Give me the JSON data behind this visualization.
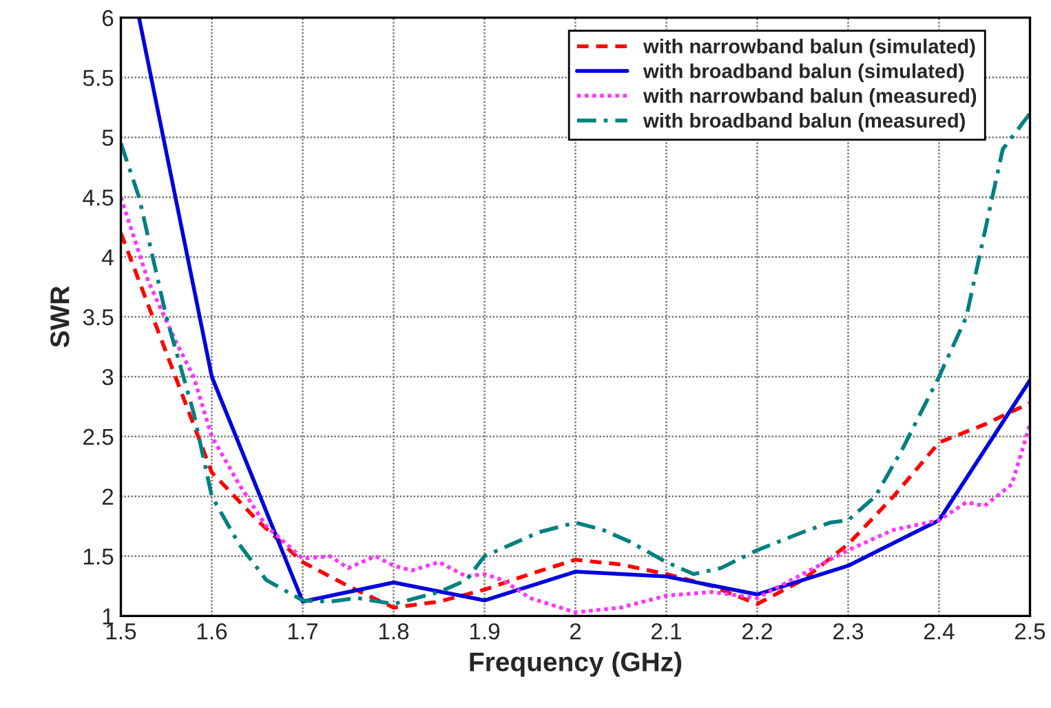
{
  "chart_data": {
    "type": "line",
    "xlabel": "Frequency (GHz)",
    "ylabel": "SWR",
    "xlim": [
      1.5,
      2.5
    ],
    "xticks": [
      1.5,
      1.6,
      1.7,
      1.8,
      1.9,
      2,
      2.1,
      2.2,
      2.3,
      2.4,
      2.5
    ],
    "ylim": [
      1,
      6
    ],
    "yticks": [
      1,
      1.5,
      2,
      2.5,
      3,
      3.5,
      4,
      4.5,
      5,
      5.5,
      6
    ],
    "grid": true,
    "legend": "top right",
    "marker": "none",
    "series": [
      {
        "name": "with narrowband balun (simulated)",
        "color": "#ff0000",
        "line_style": "dashed",
        "x": [
          1.5,
          1.55,
          1.6,
          1.65,
          1.7,
          1.75,
          1.8,
          1.85,
          1.9,
          1.95,
          2.0,
          2.05,
          2.1,
          2.15,
          2.2,
          2.25,
          2.3,
          2.35,
          2.4,
          2.45,
          2.5
        ],
        "values": [
          4.2,
          3.2,
          2.2,
          1.8,
          1.45,
          1.25,
          1.07,
          1.12,
          1.22,
          1.35,
          1.47,
          1.43,
          1.35,
          1.25,
          1.1,
          1.3,
          1.6,
          2.0,
          2.45,
          2.6,
          2.78
        ]
      },
      {
        "name": "with broadband balun (simulated)",
        "color": "#0000dd",
        "line_style": "solid",
        "x": [
          1.52,
          1.6,
          1.7,
          1.8,
          1.9,
          2.0,
          2.1,
          2.2,
          2.3,
          2.4,
          2.5
        ],
        "values": [
          6.0,
          3.0,
          1.12,
          1.28,
          1.13,
          1.37,
          1.33,
          1.18,
          1.42,
          1.8,
          2.97
        ]
      },
      {
        "name": "with narrowband balun (measured)",
        "color": "#ff33ff",
        "line_style": "dotted",
        "x": [
          1.5,
          1.53,
          1.56,
          1.58,
          1.6,
          1.63,
          1.66,
          1.7,
          1.73,
          1.75,
          1.78,
          1.8,
          1.82,
          1.85,
          1.88,
          1.9,
          1.92,
          1.95,
          2.0,
          2.05,
          2.1,
          2.15,
          2.2,
          2.25,
          2.3,
          2.35,
          2.4,
          2.43,
          2.45,
          2.48,
          2.5
        ],
        "values": [
          4.5,
          3.8,
          3.3,
          3.0,
          2.5,
          2.1,
          1.75,
          1.48,
          1.5,
          1.4,
          1.5,
          1.42,
          1.38,
          1.45,
          1.33,
          1.35,
          1.3,
          1.15,
          1.03,
          1.07,
          1.17,
          1.2,
          1.15,
          1.35,
          1.55,
          1.72,
          1.8,
          1.95,
          1.92,
          2.1,
          2.6
        ]
      },
      {
        "name": "with broadband balun (measured)",
        "color": "#008080",
        "line_style": "dashdot",
        "x": [
          1.5,
          1.52,
          1.55,
          1.58,
          1.6,
          1.63,
          1.66,
          1.7,
          1.73,
          1.76,
          1.8,
          1.85,
          1.88,
          1.9,
          1.93,
          1.96,
          2.0,
          2.03,
          2.06,
          2.1,
          2.13,
          2.16,
          2.2,
          2.25,
          2.28,
          2.3,
          2.33,
          2.36,
          2.4,
          2.43,
          2.45,
          2.47,
          2.5
        ],
        "values": [
          4.95,
          4.5,
          3.5,
          2.7,
          2.0,
          1.6,
          1.3,
          1.13,
          1.12,
          1.15,
          1.1,
          1.2,
          1.3,
          1.5,
          1.6,
          1.7,
          1.78,
          1.72,
          1.62,
          1.45,
          1.35,
          1.4,
          1.55,
          1.7,
          1.78,
          1.8,
          2.0,
          2.4,
          3.0,
          3.5,
          4.2,
          4.9,
          5.2
        ]
      }
    ]
  }
}
